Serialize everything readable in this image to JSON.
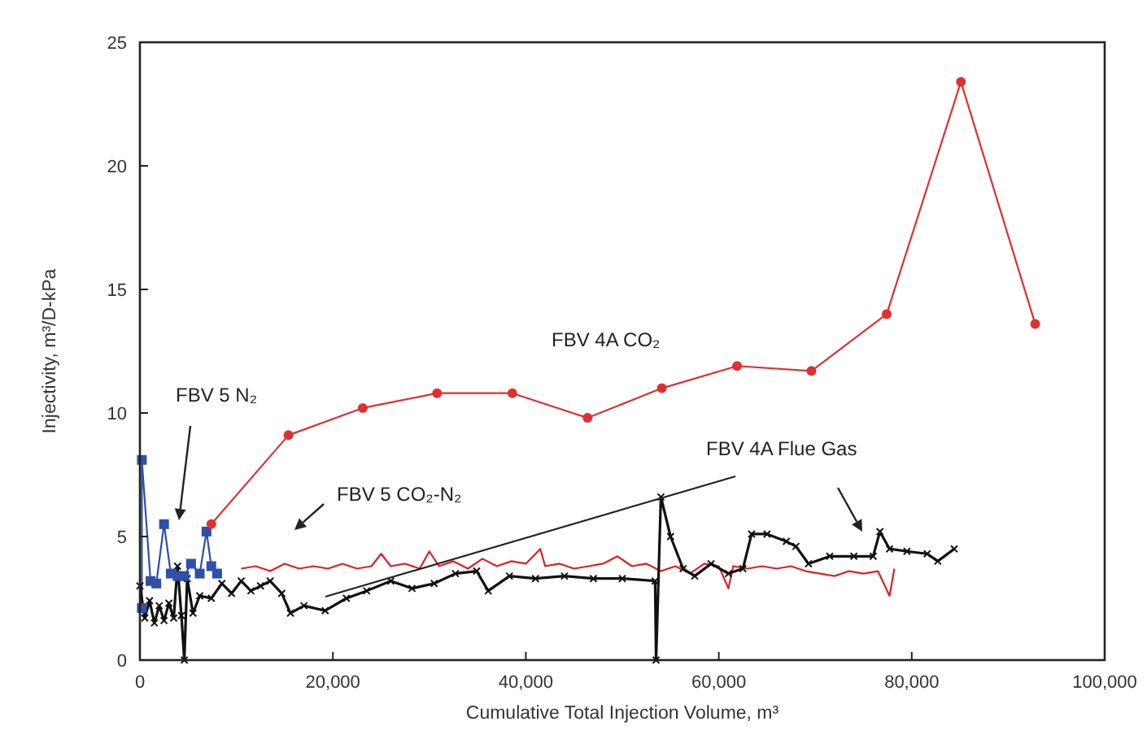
{
  "chart_data": {
    "type": "line",
    "xlabel": "Cumulative Total Injection Volume, m³",
    "ylabel": "Injectivity, m³/D-kPa",
    "xlim": [
      0,
      100000
    ],
    "xticks": [
      0,
      {
        "value": 20000,
        "label": "20,000"
      },
      {
        "value": 40000,
        "label": "40,000"
      },
      {
        "value": 60000,
        "label": "60,000"
      },
      {
        "value": 80000,
        "label": "80,000"
      },
      {
        "value": 100000,
        "label": "100,000"
      }
    ],
    "ylim": [
      0,
      25
    ],
    "yticks": [
      0,
      5,
      10,
      15,
      20,
      25
    ],
    "series": [
      {
        "name": "FBV 4A CO₂",
        "color": "#e03030",
        "marker": "circle",
        "x": [
          7400,
          15400,
          23100,
          30800,
          38600,
          46400,
          54100,
          61900,
          69600,
          77400,
          85100,
          92800
        ],
        "values": [
          5.5,
          9.1,
          10.2,
          10.8,
          10.8,
          9.8,
          11.0,
          11.9,
          11.7,
          14.0,
          23.4,
          13.6
        ]
      },
      {
        "name": "FBV 5 N₂",
        "color": "#2f4fa8",
        "marker": "square",
        "x": [
          200,
          200,
          1100,
          1700,
          2500,
          3200,
          3900,
          4600,
          5300,
          6200,
          6900,
          7400,
          8000
        ],
        "values": [
          2.1,
          8.1,
          3.2,
          3.1,
          5.5,
          3.5,
          3.4,
          3.4,
          3.9,
          3.5,
          5.2,
          3.8,
          3.5
        ]
      },
      {
        "name": "FBV 5 CO₂-N₂",
        "color": "#e02020",
        "marker": "none",
        "x": [
          10500,
          12000,
          13500,
          15000,
          16500,
          18000,
          19500,
          21000,
          22500,
          24000,
          25000,
          26000,
          27500,
          29000,
          30000,
          31000,
          32500,
          34000,
          35500,
          37000,
          38500,
          40000,
          41500,
          42000,
          43500,
          45000,
          46500,
          48000,
          49500,
          51000,
          52500,
          54000,
          55500,
          57000,
          58500,
          60000,
          61000,
          61500,
          63000,
          64500,
          66000,
          67500,
          69000,
          70500,
          72000,
          73500,
          75000,
          76500,
          77700,
          78200
        ],
        "values": [
          3.7,
          3.8,
          3.6,
          3.9,
          3.7,
          3.8,
          3.7,
          3.9,
          3.7,
          3.8,
          4.3,
          3.8,
          3.9,
          3.7,
          4.4,
          3.8,
          4.0,
          3.7,
          4.1,
          3.8,
          4.0,
          3.9,
          4.5,
          3.8,
          3.9,
          3.7,
          3.8,
          3.9,
          4.2,
          3.8,
          3.9,
          3.6,
          3.8,
          3.5,
          3.9,
          3.8,
          2.9,
          3.8,
          3.7,
          3.8,
          3.7,
          3.8,
          3.6,
          3.5,
          3.4,
          3.6,
          3.5,
          3.6,
          2.6,
          3.7
        ]
      },
      {
        "name": "FBV 4A Flue Gas",
        "color": "#111111",
        "marker": "cross",
        "x": [
          0,
          500,
          1000,
          1500,
          2000,
          2500,
          3000,
          3500,
          3900,
          4300,
          4600,
          4900,
          5500,
          6200,
          7400,
          8500,
          9500,
          10500,
          11500,
          12500,
          13500,
          14700,
          15600,
          17000,
          19200,
          21400,
          23500,
          26000,
          28200,
          30500,
          32700,
          34900,
          36100,
          38300,
          41000,
          44000,
          47000,
          50000,
          53400,
          53500,
          54000,
          55000,
          56300,
          57500,
          59200,
          61000,
          62500,
          63400,
          65000,
          67000,
          68000,
          69300,
          71500,
          74000,
          76000,
          76700,
          77700,
          79500,
          81600,
          82700,
          84400
        ],
        "values": [
          3.0,
          1.7,
          2.4,
          1.5,
          2.2,
          1.6,
          2.3,
          1.7,
          3.8,
          1.8,
          0,
          3.3,
          1.9,
          2.6,
          2.5,
          3.1,
          2.7,
          3.2,
          2.8,
          3.0,
          3.2,
          2.7,
          1.9,
          2.2,
          2.0,
          2.5,
          2.8,
          3.2,
          2.9,
          3.1,
          3.5,
          3.6,
          2.8,
          3.4,
          3.3,
          3.4,
          3.3,
          3.3,
          3.2,
          0,
          6.6,
          5.0,
          3.7,
          3.4,
          3.9,
          3.5,
          3.7,
          5.1,
          5.1,
          4.8,
          4.6,
          3.9,
          4.2,
          4.2,
          4.2,
          5.2,
          4.5,
          4.4,
          4.3,
          4.0,
          4.5
        ]
      }
    ]
  }
}
